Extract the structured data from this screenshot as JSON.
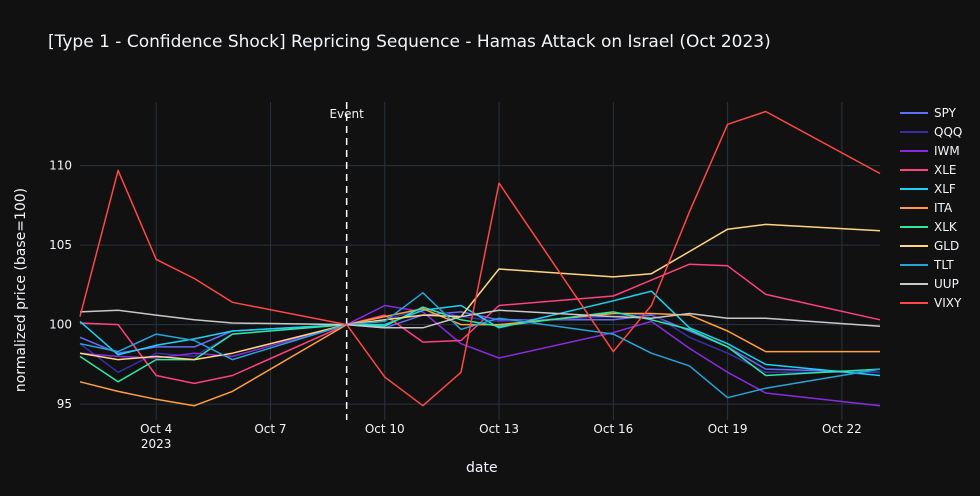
{
  "chart_data": {
    "type": "line",
    "title": "[Type 1 - Confidence Shock] Repricing Sequence - Hamas Attack on Israel (Oct 2023)",
    "xlabel": "date",
    "ylabel": "normalized price (base=100)",
    "x_tick_labels": [
      {
        "day": 4,
        "label": "Oct 4",
        "sublabel": "2023"
      },
      {
        "day": 7,
        "label": "Oct 7"
      },
      {
        "day": 10,
        "label": "Oct 10"
      },
      {
        "day": 13,
        "label": "Oct 13"
      },
      {
        "day": 16,
        "label": "Oct 16"
      },
      {
        "day": 19,
        "label": "Oct 19"
      },
      {
        "day": 22,
        "label": "Oct 22"
      }
    ],
    "xlim": [
      "2023-10-02",
      "2023-10-23"
    ],
    "ylim": [
      94,
      114
    ],
    "y_ticks": [
      95,
      100,
      105,
      110
    ],
    "grid": true,
    "legend_position": "right",
    "event": {
      "x": "2023-10-09",
      "label": "Event"
    },
    "series": [
      {
        "name": "SPY",
        "color": "#636efa",
        "x": [
          2,
          3,
          4,
          5,
          6,
          9,
          10,
          11,
          12,
          13,
          16,
          17,
          18,
          19,
          20,
          23
        ],
        "values": [
          99.2,
          98.2,
          98.6,
          98.6,
          99.6,
          100,
          99.8,
          100.6,
          100.8,
          100.3,
          100.3,
          100.6,
          99.6,
          98.6,
          97.2,
          97.0
        ]
      },
      {
        "name": "QQQ",
        "color": "#3a2ea8",
        "x": [
          2,
          3,
          4,
          5,
          6,
          9,
          10,
          11,
          12,
          13,
          16,
          17,
          18,
          19,
          20,
          23
        ],
        "values": [
          98.8,
          97.0,
          98.2,
          98.0,
          99.4,
          100,
          100.3,
          101.0,
          100.5,
          100.2,
          100.5,
          100.7,
          99.2,
          98.2,
          97.0,
          97.0
        ]
      },
      {
        "name": "IWM",
        "color": "#8a2be2",
        "x": [
          2,
          3,
          4,
          5,
          6,
          9,
          10,
          11,
          12,
          13,
          16,
          17,
          18,
          19,
          20,
          23
        ],
        "values": [
          98.2,
          98.0,
          97.9,
          98.2,
          98.0,
          100,
          101.2,
          100.8,
          98.8,
          97.9,
          99.5,
          100.2,
          98.5,
          97.0,
          95.7,
          94.9
        ]
      },
      {
        "name": "XLE",
        "color": "#ff4081",
        "x": [
          2,
          3,
          4,
          5,
          6,
          9,
          10,
          11,
          12,
          13,
          16,
          17,
          18,
          19,
          20,
          23
        ],
        "values": [
          100.1,
          100.0,
          96.8,
          96.3,
          96.8,
          100,
          100.6,
          98.9,
          99.0,
          101.2,
          101.8,
          102.8,
          103.8,
          103.7,
          101.9,
          100.3
        ]
      },
      {
        "name": "XLF",
        "color": "#19d3f3",
        "x": [
          2,
          3,
          4,
          5,
          6,
          9,
          10,
          11,
          12,
          13,
          16,
          17,
          18,
          19,
          20,
          23
        ],
        "values": [
          100.2,
          98.1,
          98.7,
          99.1,
          99.6,
          100,
          100.0,
          100.9,
          101.2,
          99.8,
          101.5,
          102.1,
          99.8,
          98.8,
          97.5,
          96.8
        ]
      },
      {
        "name": "ITA",
        "color": "#ff9f40",
        "x": [
          2,
          3,
          4,
          5,
          6,
          9,
          10,
          11,
          12,
          13,
          16,
          17,
          18,
          19,
          20,
          23
        ],
        "values": [
          96.4,
          95.8,
          95.3,
          94.9,
          95.8,
          100,
          100.5,
          101.0,
          100.0,
          100.0,
          100.7,
          100.7,
          100.6,
          99.6,
          98.3,
          98.3
        ]
      },
      {
        "name": "XLK",
        "color": "#2ee8a0",
        "x": [
          2,
          3,
          4,
          5,
          6,
          9,
          10,
          11,
          12,
          13,
          16,
          17,
          18,
          19,
          20,
          23
        ],
        "values": [
          98.0,
          96.4,
          97.8,
          97.8,
          99.4,
          100,
          99.9,
          101.1,
          100.3,
          99.9,
          100.8,
          100.3,
          99.7,
          98.6,
          96.8,
          97.2
        ]
      },
      {
        "name": "GLD",
        "color": "#ffd580",
        "x": [
          2,
          3,
          4,
          5,
          6,
          9,
          10,
          11,
          12,
          13,
          16,
          17,
          18,
          19,
          20,
          23
        ],
        "values": [
          98.2,
          97.8,
          98.0,
          97.8,
          98.2,
          100,
          100.3,
          100.6,
          100.5,
          103.5,
          103.0,
          103.2,
          104.6,
          106.0,
          106.3,
          105.9
        ]
      },
      {
        "name": "TLT",
        "color": "#29a3d6",
        "x": [
          2,
          3,
          4,
          5,
          6,
          9,
          10,
          11,
          12,
          13,
          16,
          17,
          18,
          19,
          20,
          23
        ],
        "values": [
          98.8,
          98.3,
          99.4,
          99.0,
          97.8,
          100,
          100.2,
          102.0,
          99.7,
          100.4,
          99.4,
          98.2,
          97.4,
          95.4,
          96.0,
          97.2
        ]
      },
      {
        "name": "UUP",
        "color": "#c8c8c8",
        "x": [
          2,
          3,
          4,
          5,
          6,
          9,
          10,
          11,
          12,
          13,
          16,
          17,
          18,
          19,
          20,
          23
        ],
        "values": [
          100.8,
          100.9,
          100.6,
          100.3,
          100.1,
          100,
          99.8,
          99.8,
          100.5,
          100.9,
          100.5,
          100.4,
          100.7,
          100.4,
          100.4,
          99.9
        ]
      },
      {
        "name": "VIXY",
        "color": "#ff4747",
        "x": [
          2,
          3,
          4,
          5,
          6,
          9,
          10,
          11,
          12,
          13,
          16,
          17,
          18,
          19,
          20,
          23
        ],
        "values": [
          100.5,
          109.7,
          104.1,
          102.9,
          101.4,
          100,
          96.7,
          94.9,
          97.0,
          108.9,
          98.3,
          101.2,
          107.1,
          112.6,
          113.4,
          109.5
        ]
      }
    ]
  }
}
